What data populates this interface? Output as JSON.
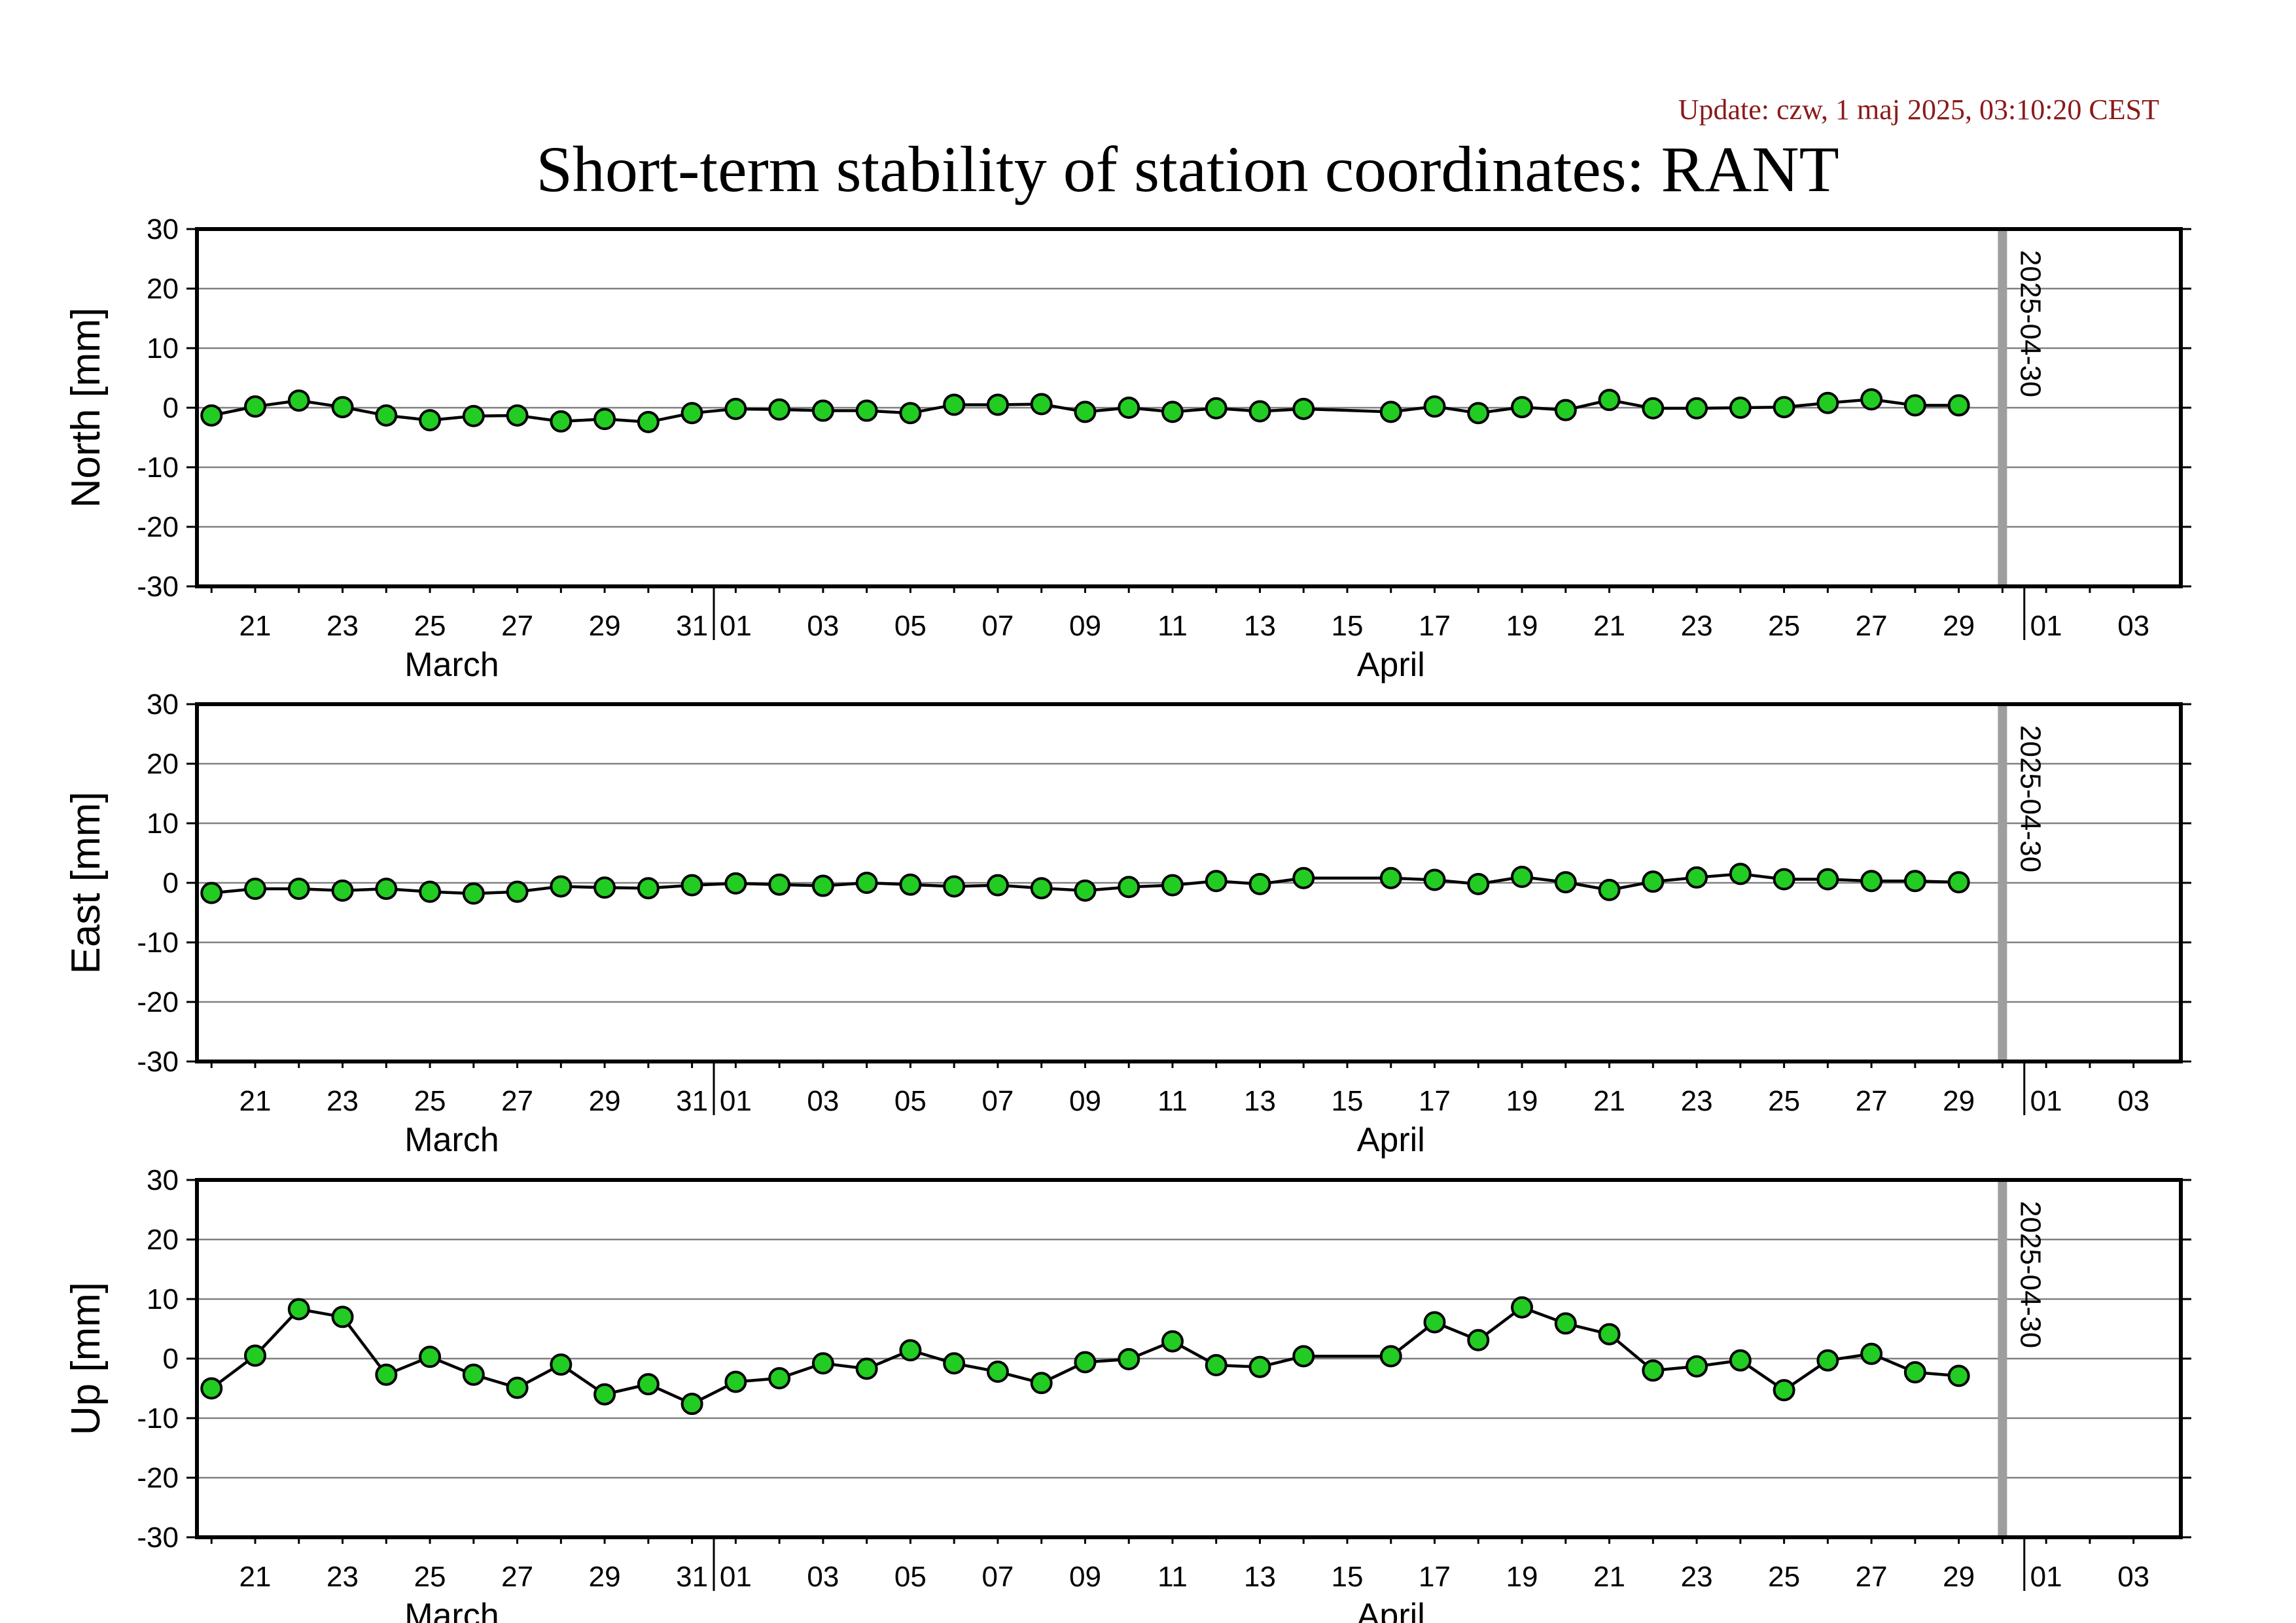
{
  "header": {
    "update_text": "Update: czw, 1 maj 2025, 03:10:20 CEST",
    "title": "Short-term stability of station coordinates: RANT",
    "update_color": "#8b1a1a"
  },
  "chart_data": [
    {
      "type": "line",
      "ylabel": "North [mm]",
      "ylim": [
        -30,
        30
      ],
      "yticks": [
        30,
        20,
        10,
        0,
        -10,
        -20,
        -30
      ],
      "xlim": [
        "2025-03-19T16:00",
        "2025-05-04T02:00"
      ],
      "x_tick_labels": [
        "21",
        "23",
        "25",
        "27",
        "29",
        "31",
        "01",
        "03",
        "05",
        "07",
        "09",
        "11",
        "13",
        "15",
        "17",
        "19",
        "21",
        "23",
        "25",
        "27",
        "29",
        "01",
        "03"
      ],
      "month_labels": [
        "March",
        "April"
      ],
      "grid": true,
      "marker_color": "#22cc22",
      "marker": "circle",
      "marker_line": "#000000",
      "reference_line": {
        "date": "2025-04-30",
        "label": "2025-04-30",
        "color": "#9e9e9e"
      },
      "series": [
        {
          "x": [
            "2025-03-20",
            "2025-03-21",
            "2025-03-22",
            "2025-03-23",
            "2025-03-24",
            "2025-03-25",
            "2025-03-26",
            "2025-03-27",
            "2025-03-28",
            "2025-03-29",
            "2025-03-30",
            "2025-03-31",
            "2025-04-01",
            "2025-04-02",
            "2025-04-03",
            "2025-04-04",
            "2025-04-05",
            "2025-04-06",
            "2025-04-07",
            "2025-04-08",
            "2025-04-09",
            "2025-04-10",
            "2025-04-11",
            "2025-04-12",
            "2025-04-13",
            "2025-04-14",
            "2025-04-16",
            "2025-04-17",
            "2025-04-18",
            "2025-04-19",
            "2025-04-20",
            "2025-04-21",
            "2025-04-22",
            "2025-04-23",
            "2025-04-24",
            "2025-04-25",
            "2025-04-26",
            "2025-04-27",
            "2025-04-28",
            "2025-04-29"
          ],
          "y": [
            -1.3,
            0.2,
            1.2,
            0.1,
            -1.3,
            -2.1,
            -1.4,
            -1.3,
            -2.3,
            -1.9,
            -2.4,
            -0.9,
            -0.2,
            -0.3,
            -0.5,
            -0.5,
            -0.9,
            0.5,
            0.5,
            0.6,
            -0.7,
            -0.0,
            -0.7,
            -0.1,
            -0.6,
            -0.2,
            -0.7,
            0.2,
            -0.9,
            0.1,
            -0.4,
            1.3,
            -0.1,
            -0.1,
            -0.0,
            0.1,
            0.8,
            1.4,
            0.4,
            0.4
          ]
        }
      ]
    },
    {
      "type": "line",
      "ylabel": "East [mm]",
      "ylim": [
        -30,
        30
      ],
      "yticks": [
        30,
        20,
        10,
        0,
        -10,
        -20,
        -30
      ],
      "xlim": [
        "2025-03-19T16:00",
        "2025-05-04T02:00"
      ],
      "x_tick_labels": [
        "21",
        "23",
        "25",
        "27",
        "29",
        "31",
        "01",
        "03",
        "05",
        "07",
        "09",
        "11",
        "13",
        "15",
        "17",
        "19",
        "21",
        "23",
        "25",
        "27",
        "29",
        "01",
        "03"
      ],
      "month_labels": [
        "March",
        "April"
      ],
      "grid": true,
      "marker_color": "#22cc22",
      "marker": "circle",
      "marker_line": "#000000",
      "reference_line": {
        "date": "2025-04-30",
        "label": "2025-04-30",
        "color": "#9e9e9e"
      },
      "series": [
        {
          "x": [
            "2025-03-20",
            "2025-03-21",
            "2025-03-22",
            "2025-03-23",
            "2025-03-24",
            "2025-03-25",
            "2025-03-26",
            "2025-03-27",
            "2025-03-28",
            "2025-03-29",
            "2025-03-30",
            "2025-03-31",
            "2025-04-01",
            "2025-04-02",
            "2025-04-03",
            "2025-04-04",
            "2025-04-05",
            "2025-04-06",
            "2025-04-07",
            "2025-04-08",
            "2025-04-09",
            "2025-04-10",
            "2025-04-11",
            "2025-04-12",
            "2025-04-13",
            "2025-04-14",
            "2025-04-16",
            "2025-04-17",
            "2025-04-18",
            "2025-04-19",
            "2025-04-20",
            "2025-04-21",
            "2025-04-22",
            "2025-04-23",
            "2025-04-24",
            "2025-04-25",
            "2025-04-26",
            "2025-04-27",
            "2025-04-28",
            "2025-04-29"
          ],
          "y": [
            -1.7,
            -1.0,
            -1.0,
            -1.3,
            -1.0,
            -1.5,
            -1.8,
            -1.5,
            -0.6,
            -0.8,
            -0.9,
            -0.4,
            -0.1,
            -0.3,
            -0.5,
            0.0,
            -0.3,
            -0.6,
            -0.4,
            -0.9,
            -1.3,
            -0.7,
            -0.4,
            0.3,
            -0.2,
            0.8,
            0.8,
            0.5,
            -0.2,
            1.0,
            0.1,
            -1.2,
            0.2,
            0.9,
            1.5,
            0.6,
            0.6,
            0.3,
            0.3,
            0.1
          ]
        }
      ]
    },
    {
      "type": "line",
      "ylabel": "Up [mm]",
      "ylim": [
        -30,
        30
      ],
      "yticks": [
        30,
        20,
        10,
        0,
        -10,
        -20,
        -30
      ],
      "xlim": [
        "2025-03-19T16:00",
        "2025-05-04T02:00"
      ],
      "x_tick_labels": [
        "21",
        "23",
        "25",
        "27",
        "29",
        "31",
        "01",
        "03",
        "05",
        "07",
        "09",
        "11",
        "13",
        "15",
        "17",
        "19",
        "21",
        "23",
        "25",
        "27",
        "29",
        "01",
        "03"
      ],
      "month_labels": [
        "March",
        "April"
      ],
      "grid": true,
      "marker_color": "#22cc22",
      "marker": "circle",
      "marker_line": "#000000",
      "reference_line": {
        "date": "2025-04-30",
        "label": "2025-04-30",
        "color": "#9e9e9e"
      },
      "series": [
        {
          "x": [
            "2025-03-20",
            "2025-03-21",
            "2025-03-22",
            "2025-03-23",
            "2025-03-24",
            "2025-03-25",
            "2025-03-26",
            "2025-03-27",
            "2025-03-28",
            "2025-03-29",
            "2025-03-30",
            "2025-03-31",
            "2025-04-01",
            "2025-04-02",
            "2025-04-03",
            "2025-04-04",
            "2025-04-05",
            "2025-04-06",
            "2025-04-07",
            "2025-04-08",
            "2025-04-09",
            "2025-04-10",
            "2025-04-11",
            "2025-04-12",
            "2025-04-13",
            "2025-04-14",
            "2025-04-16",
            "2025-04-17",
            "2025-04-18",
            "2025-04-19",
            "2025-04-20",
            "2025-04-21",
            "2025-04-22",
            "2025-04-23",
            "2025-04-24",
            "2025-04-25",
            "2025-04-26",
            "2025-04-27",
            "2025-04-28",
            "2025-04-29"
          ],
          "y": [
            -5.0,
            0.5,
            8.3,
            7.0,
            -2.7,
            0.3,
            -2.7,
            -4.9,
            -1.0,
            -6.0,
            -4.3,
            -7.6,
            -3.9,
            -3.3,
            -0.8,
            -1.7,
            1.4,
            -0.8,
            -2.2,
            -4.1,
            -0.6,
            -0.1,
            2.9,
            -1.1,
            -1.4,
            0.4,
            0.4,
            6.1,
            3.1,
            8.6,
            5.9,
            4.1,
            -2.0,
            -1.3,
            -0.3,
            -5.3,
            -0.3,
            0.8,
            -2.3,
            -2.9
          ]
        }
      ]
    }
  ]
}
